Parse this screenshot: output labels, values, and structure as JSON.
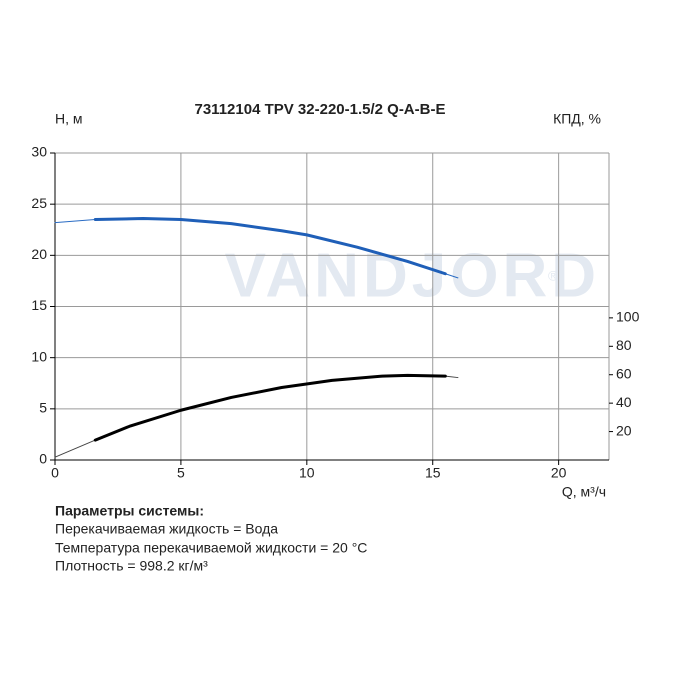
{
  "chart_data": {
    "type": "line",
    "title": "73112104 TPV 32-220-1.5/2 Q-A-B-E",
    "ylabel": "H, м",
    "y2label": "КПД, %",
    "xlabel": "Q, м³/ч",
    "watermark": "VANDJORD",
    "watermark_sign": "®",
    "xlim": [
      0,
      22
    ],
    "xticks": [
      0,
      5,
      10,
      15,
      20
    ],
    "ylim": [
      0,
      30
    ],
    "yticks": [
      0,
      5,
      10,
      15,
      20,
      25,
      30
    ],
    "y2lim": [
      0,
      216
    ],
    "y2ticks": [
      20,
      40,
      60,
      80,
      100
    ],
    "grid": true,
    "series": [
      {
        "color": "#2a6cc4",
        "line_width": 1,
        "x": [
          0,
          1.6,
          3.5,
          5,
          7,
          9,
          10,
          12,
          14,
          15.5,
          16
        ],
        "values": [
          23.2,
          23.5,
          23.6,
          23.5,
          23.1,
          22.4,
          22.0,
          20.8,
          19.4,
          18.2,
          17.8
        ]
      },
      {
        "color": "#1f5fb8",
        "line_width": 3,
        "x": [
          1.6,
          3.5,
          5,
          7,
          9,
          10,
          12,
          14,
          15.5
        ],
        "values": [
          23.5,
          23.6,
          23.5,
          23.1,
          22.4,
          22.0,
          20.8,
          19.4,
          18.2
        ]
      },
      {
        "color": "#444444",
        "line_width": 1,
        "axis": "y2",
        "x": [
          0,
          1.6,
          3,
          5,
          7,
          9,
          11,
          13,
          14,
          15.5,
          16
        ],
        "values": [
          2,
          14,
          24,
          35,
          44,
          51,
          56,
          59,
          59.5,
          59,
          58
        ]
      },
      {
        "color": "#000000",
        "line_width": 3,
        "axis": "y2",
        "x": [
          1.6,
          3,
          5,
          7,
          9,
          11,
          13,
          14,
          15.5
        ],
        "values": [
          14,
          24,
          35,
          44,
          51,
          56,
          59,
          59.5,
          59
        ]
      }
    ]
  },
  "system_parameters": {
    "title": "Параметры системы:",
    "lines": [
      "Перекачиваемая жидкость = Вода",
      "Температура перекачиваемой жидкости = 20 °C",
      "Плотность = 998.2 кг/м³"
    ]
  }
}
